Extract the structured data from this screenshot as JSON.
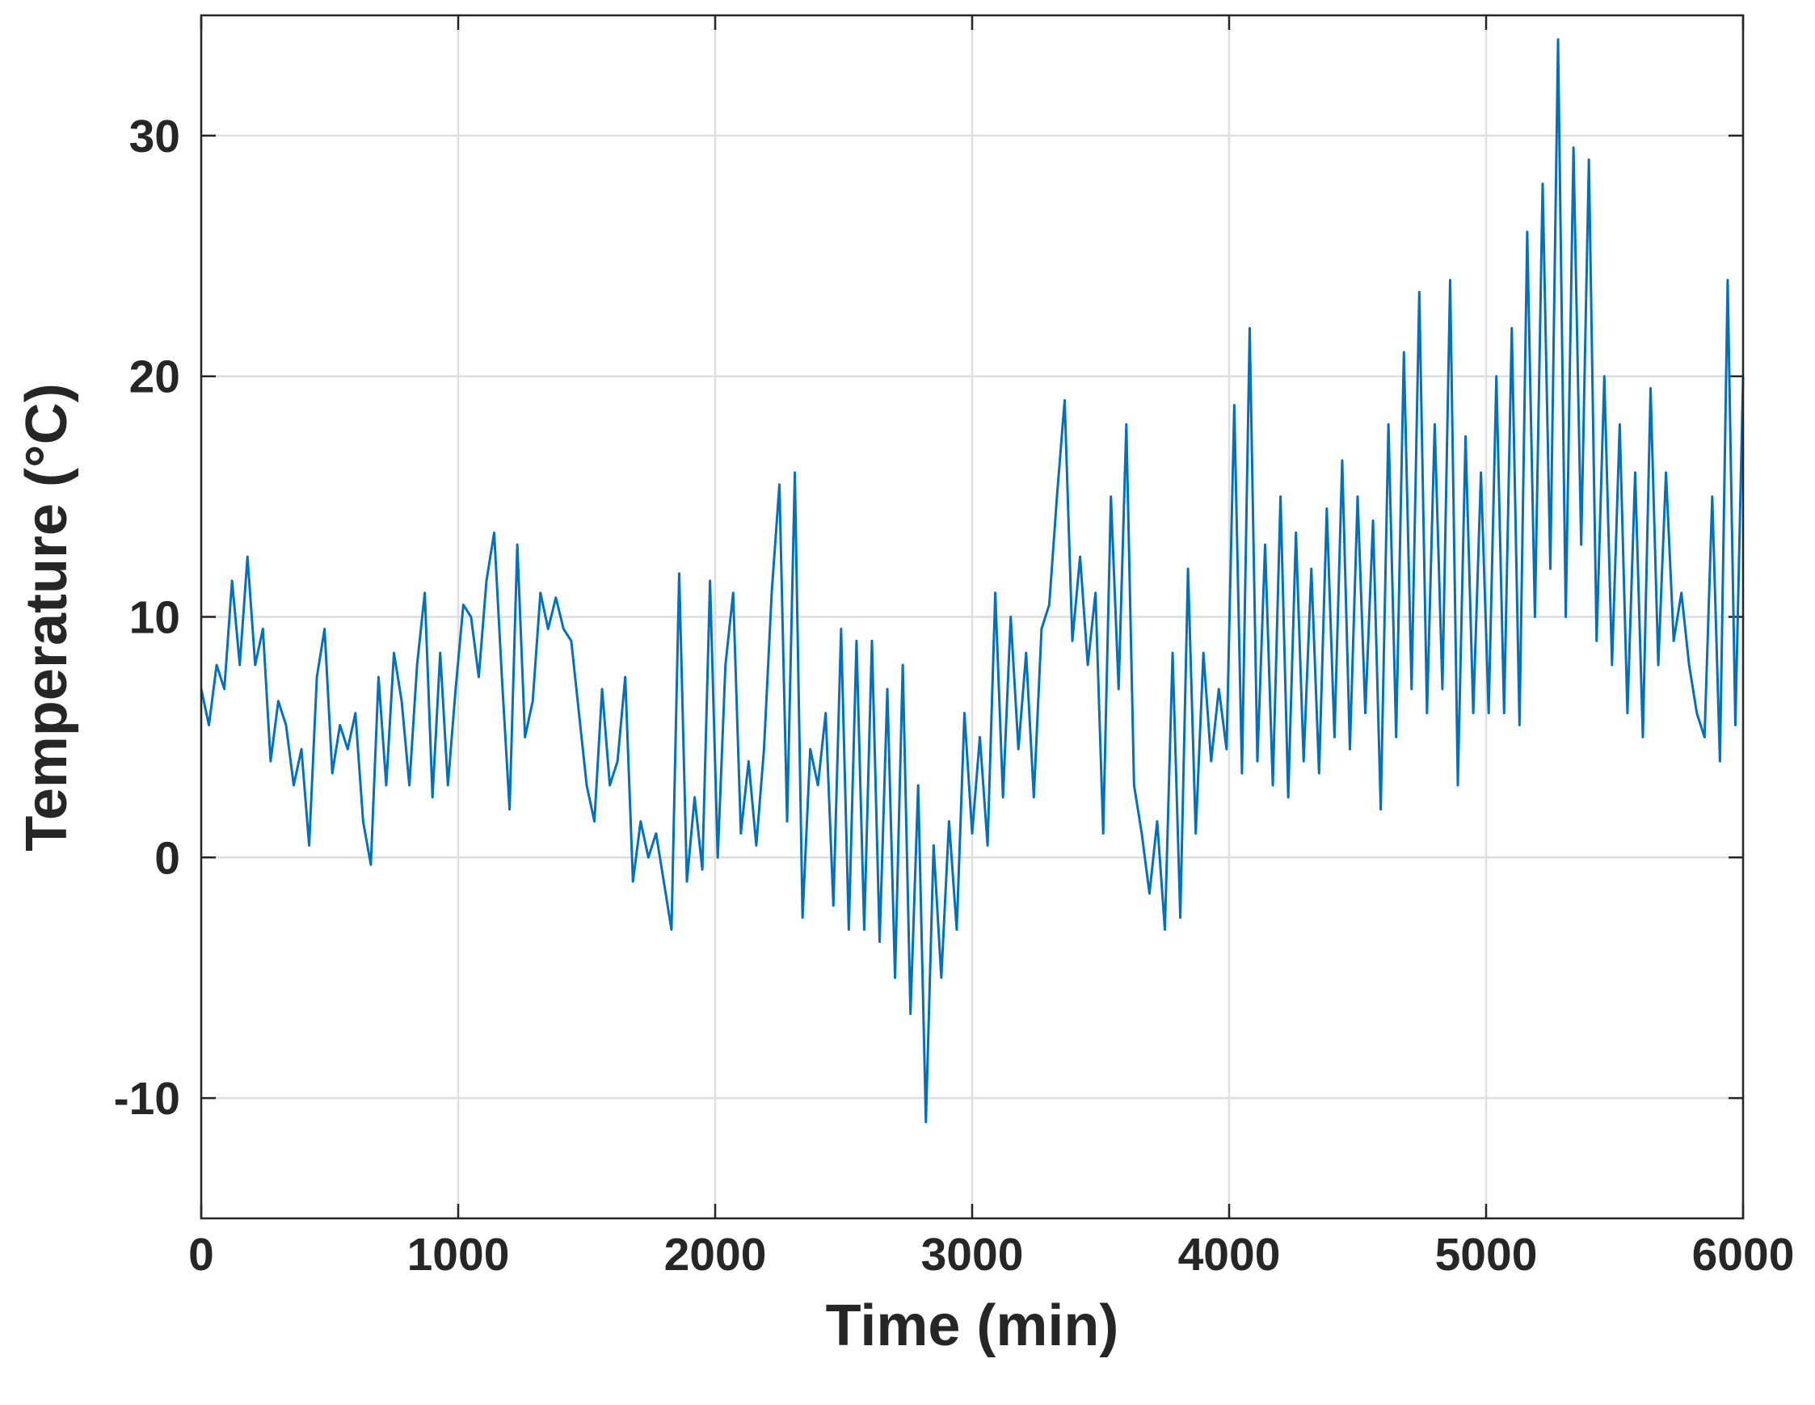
{
  "chart_data": {
    "type": "line",
    "xlabel": "Time (min)",
    "ylabel": "Temperature (°C)",
    "xlim": [
      0,
      6000
    ],
    "xticks": [
      0,
      1000,
      2000,
      3000,
      4000,
      5000,
      6000
    ],
    "ylim": [
      -15,
      35
    ],
    "yticks": [
      -10,
      0,
      10,
      20,
      30
    ],
    "grid": true,
    "series": [
      {
        "color": "#0072bd",
        "x": [
          0,
          30,
          60,
          90,
          120,
          150,
          180,
          210,
          240,
          270,
          300,
          330,
          360,
          390,
          420,
          450,
          480,
          510,
          540,
          570,
          600,
          630,
          660,
          690,
          720,
          750,
          780,
          810,
          840,
          870,
          900,
          930,
          960,
          990,
          1020,
          1050,
          1080,
          1110,
          1140,
          1170,
          1200,
          1230,
          1260,
          1290,
          1320,
          1350,
          1380,
          1410,
          1440,
          1470,
          1500,
          1530,
          1560,
          1590,
          1620,
          1650,
          1680,
          1710,
          1740,
          1770,
          1800,
          1830,
          1860,
          1890,
          1920,
          1950,
          1980,
          2010,
          2040,
          2070,
          2100,
          2130,
          2160,
          2190,
          2220,
          2250,
          2280,
          2310,
          2340,
          2370,
          2400,
          2430,
          2460,
          2490,
          2520,
          2550,
          2580,
          2610,
          2640,
          2670,
          2700,
          2730,
          2760,
          2790,
          2820,
          2850,
          2880,
          2910,
          2940,
          2970,
          3000,
          3030,
          3060,
          3090,
          3120,
          3150,
          3180,
          3210,
          3240,
          3270,
          3300,
          3330,
          3360,
          3390,
          3420,
          3450,
          3480,
          3510,
          3540,
          3570,
          3600,
          3630,
          3660,
          3690,
          3720,
          3750,
          3780,
          3810,
          3840,
          3870,
          3900,
          3930,
          3960,
          3990,
          4020,
          4050,
          4080,
          4110,
          4140,
          4170,
          4200,
          4230,
          4260,
          4290,
          4320,
          4350,
          4380,
          4410,
          4440,
          4470,
          4500,
          4530,
          4560,
          4590,
          4620,
          4650,
          4680,
          4710,
          4740,
          4770,
          4800,
          4830,
          4860,
          4890,
          4920,
          4950,
          4980,
          5010,
          5040,
          5070,
          5100,
          5130,
          5160,
          5190,
          5220,
          5250,
          5280,
          5310,
          5340,
          5370,
          5400,
          5430,
          5460,
          5490,
          5520,
          5550,
          5580,
          5610,
          5640,
          5670,
          5700,
          5730,
          5760,
          5790,
          5820,
          5850,
          5880,
          5910,
          5940,
          5970,
          6000
        ],
        "values": [
          7,
          5.5,
          8,
          7,
          11.5,
          8,
          12.5,
          8,
          9.5,
          4,
          6.5,
          5.5,
          3,
          4.5,
          0.5,
          7.5,
          9.5,
          3.5,
          5.5,
          4.5,
          6,
          1.5,
          -0.3,
          7.5,
          3,
          8.5,
          6.5,
          3,
          8,
          11,
          2.5,
          8.5,
          3,
          7,
          10.5,
          10,
          7.5,
          11.5,
          13.5,
          7.5,
          2,
          13,
          5,
          6.5,
          11,
          9.5,
          10.8,
          9.5,
          9,
          6,
          3,
          1.5,
          7,
          3,
          4,
          7.5,
          -1,
          1.5,
          0,
          1,
          -1,
          -3,
          11.8,
          -1,
          2.5,
          -0.5,
          11.5,
          0,
          8,
          11,
          1,
          4,
          0.5,
          4.5,
          11,
          15.5,
          1.5,
          16,
          -2.5,
          4.5,
          3,
          6,
          -2,
          9.5,
          -3,
          9,
          -3,
          9,
          -3.5,
          7,
          -5,
          8,
          -6.5,
          3,
          -11,
          0.5,
          -5,
          1.5,
          -3,
          6,
          1,
          5,
          0.5,
          11,
          2.5,
          10,
          4.5,
          8.5,
          2.5,
          9.5,
          10.5,
          15,
          19,
          9,
          12.5,
          8,
          11,
          1,
          15,
          7,
          18,
          3,
          1,
          -1.5,
          1.5,
          -3,
          8.5,
          -2.5,
          12,
          1,
          8.5,
          4,
          7,
          4.5,
          18.8,
          3.5,
          22,
          4,
          13,
          3,
          15,
          2.5,
          13.5,
          4,
          12,
          3.5,
          14.5,
          5,
          16.5,
          4.5,
          15,
          6,
          14,
          2,
          18,
          5,
          21,
          7,
          23.5,
          6,
          18,
          7,
          24,
          3,
          17.5,
          6,
          16,
          6,
          20,
          6,
          22,
          5.5,
          26,
          10,
          28,
          12,
          34,
          10,
          29.5,
          13,
          29,
          9,
          20,
          8,
          18,
          6,
          16,
          5,
          19.5,
          8,
          16,
          9,
          11,
          8,
          6,
          5,
          15,
          4,
          24,
          5.5,
          20
        ]
      }
    ]
  }
}
